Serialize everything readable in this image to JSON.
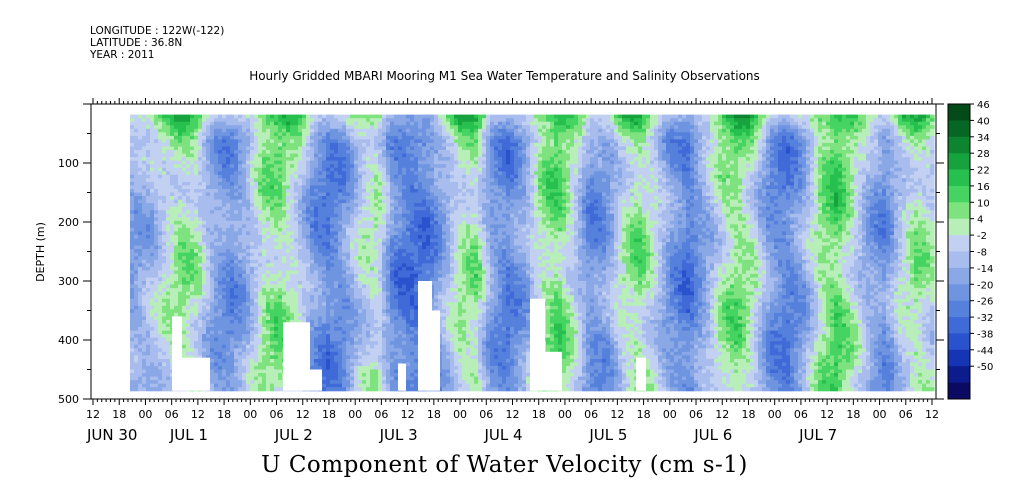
{
  "header": {
    "longitude": "LONGITUDE : 122W(-122)",
    "latitude": "LATITUDE : 36.8N",
    "year": "YEAR : 2011"
  },
  "chart_data": {
    "type": "heatmap",
    "title": "Hourly Gridded MBARI Mooring M1 Sea Water Temperature and Salinity Observations",
    "xlabel": "",
    "ylabel": "DEPTH (m)",
    "caption": "U Component of Water Velocity (cm s-1)",
    "x_hour_ticks": [
      "12",
      "18",
      "00",
      "06",
      "12",
      "18",
      "00",
      "06",
      "12",
      "18",
      "00",
      "06",
      "12",
      "18",
      "00",
      "06",
      "12",
      "18",
      "00",
      "06",
      "12",
      "18",
      "00",
      "06",
      "12",
      "18",
      "00",
      "06",
      "12",
      "18",
      "00",
      "06",
      "12"
    ],
    "x_date_labels": [
      "JUN 30",
      "JUL  1",
      "JUL  2",
      "JUL  3",
      "JUL  4",
      "JUL  5",
      "JUL  6",
      "JUL  7"
    ],
    "y_ticks": [
      100,
      200,
      300,
      400,
      500
    ],
    "y_tick_labels": [
      "100",
      "200",
      "300",
      "400",
      "500"
    ],
    "ylim": [
      500,
      0
    ],
    "data_depth_range": [
      18,
      486
    ],
    "colorbar": {
      "levels": [
        -50,
        -44,
        -38,
        -32,
        -26,
        -20,
        -14,
        -8,
        -2,
        4,
        10,
        16,
        22,
        28,
        34,
        40,
        46
      ],
      "labels": [
        "-50",
        "-44",
        "-38",
        "-32",
        "-26",
        "-20",
        "-14",
        "-8",
        "-2",
        "4",
        "10",
        "16",
        "22",
        "28",
        "34",
        "40",
        "46"
      ],
      "colors": [
        "#0a0a63",
        "#0d1c8c",
        "#1635b4",
        "#2a52cc",
        "#3f6ad8",
        "#5580dc",
        "#6f94e0",
        "#8aa8e6",
        "#a8bdee",
        "#c2d0f2",
        "#b8efb8",
        "#7ee27e",
        "#45d462",
        "#27c04f",
        "#16a23c",
        "#0d8530",
        "#066624",
        "#034a19"
      ]
    },
    "grid": false,
    "legend": "right colorbar",
    "column_means_cm_s": [
      -8,
      -4,
      6,
      14,
      10,
      -8,
      -14,
      -6,
      12,
      16,
      8,
      -10,
      -18,
      -12,
      4,
      10,
      -16,
      -22,
      -20,
      -6,
      10,
      14,
      -10,
      -18,
      -8,
      12,
      20,
      6,
      -14,
      -10,
      8,
      16,
      4,
      -12,
      -20,
      -6,
      10,
      18,
      8,
      -12,
      -18,
      -8,
      12,
      22,
      10,
      -6,
      -14,
      4,
      14,
      6
    ]
  }
}
